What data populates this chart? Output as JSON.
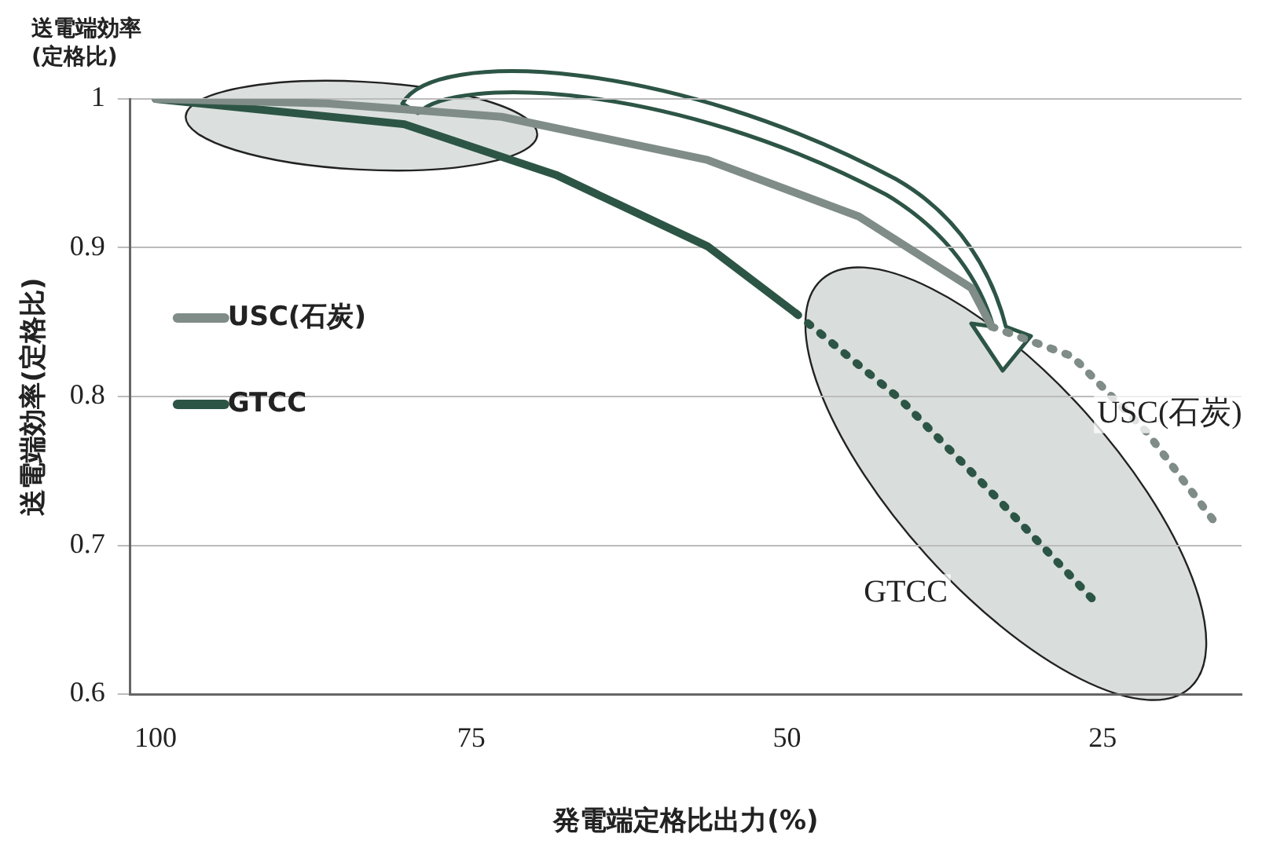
{
  "chart_data": {
    "type": "line",
    "xlabel": "発電端定格比出力(%)",
    "ylabel": "送電端効率(定格比)",
    "annotations": [
      "送電端効率\n(定格比)",
      "USC(石炭)",
      "GTCC"
    ],
    "series": [
      {
        "name": "USC(石炭)",
        "color": "#7f8c87",
        "line_style": "solid",
        "x": [
          100,
          86.4,
          72.6,
          56.3,
          44.3,
          35.4,
          33.8
        ],
        "values": [
          1.0,
          0.997,
          0.988,
          0.959,
          0.921,
          0.873,
          0.847
        ]
      },
      {
        "color": "#7f8c87",
        "line_style": "dotted",
        "x": [
          33.8,
          27.4,
          21.5,
          15.8
        ],
        "values": [
          0.847,
          0.827,
          0.776,
          0.712
        ]
      },
      {
        "name": "GTCC",
        "color": "#2d5546",
        "line_style": "solid",
        "x": [
          100,
          80.3,
          68.3,
          56.3,
          49.3
        ],
        "values": [
          1.0,
          0.983,
          0.949,
          0.901,
          0.856
        ]
      },
      {
        "color": "#2d5546",
        "line_style": "dotted",
        "x": [
          49.3,
          41,
          33.4,
          25.6
        ],
        "values": [
          0.856,
          0.798,
          0.732,
          0.662
        ]
      }
    ],
    "xlim": [
      102,
      14
    ],
    "xticks": [
      100,
      75,
      50,
      25
    ],
    "ylim": [
      0.6,
      1.0
    ],
    "yticks": [
      0.6,
      0.7,
      0.8,
      0.9,
      1
    ],
    "grid": "y",
    "legend": "left",
    "marker": "none"
  }
}
